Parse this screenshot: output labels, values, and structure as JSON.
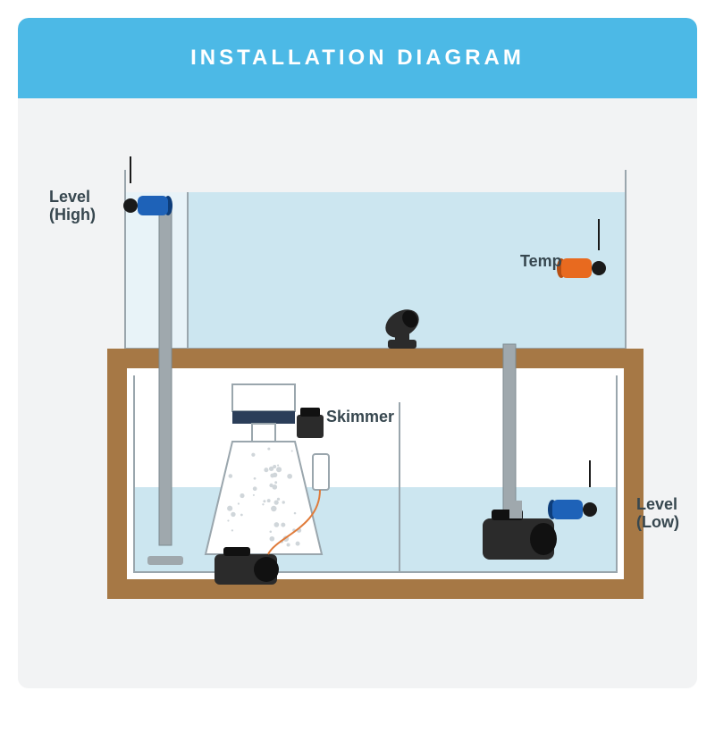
{
  "header": {
    "title": "INSTALLATION DIAGRAM",
    "bg_color": "#4cb9e6",
    "text_color": "#ffffff",
    "fontsize": 24,
    "letter_spacing": 4
  },
  "diagram": {
    "type": "infographic",
    "canvas_bg": "#f2f3f4",
    "water_color": "#cce6f0",
    "tank_outline": "#9aa6ad",
    "tank_outline_width": 2,
    "stand_color": "#a67845",
    "stand_inner": "#ffffff",
    "pipe_color": "#9fa8ad",
    "pipe_shadow": "#7d8a90",
    "pump_dark": "#2b2b2b",
    "pump_darker": "#111111",
    "skimmer_body": "#ffffff",
    "skimmer_accent": "#2b3e59",
    "skimmer_bubble": "#d0d6da",
    "wire_color": "#e07b3a",
    "label_color": "#37474f",
    "label_fontsize": 18,
    "sensors": {
      "level_high": {
        "body": "#1e62b8",
        "cap": "#1a1a1a",
        "ring": "#0d3d7a"
      },
      "temp": {
        "body": "#e86a1f",
        "cap": "#1a1a1a",
        "ring": "#b84f12"
      },
      "level_low": {
        "body": "#1e62b8",
        "cap": "#1a1a1a",
        "ring": "#0d3d7a"
      }
    },
    "labels": {
      "level_high": "Level\n(High)",
      "temp": "Temp",
      "skimmer": "Skimmer",
      "level_low": "Level\n(Low)"
    }
  }
}
